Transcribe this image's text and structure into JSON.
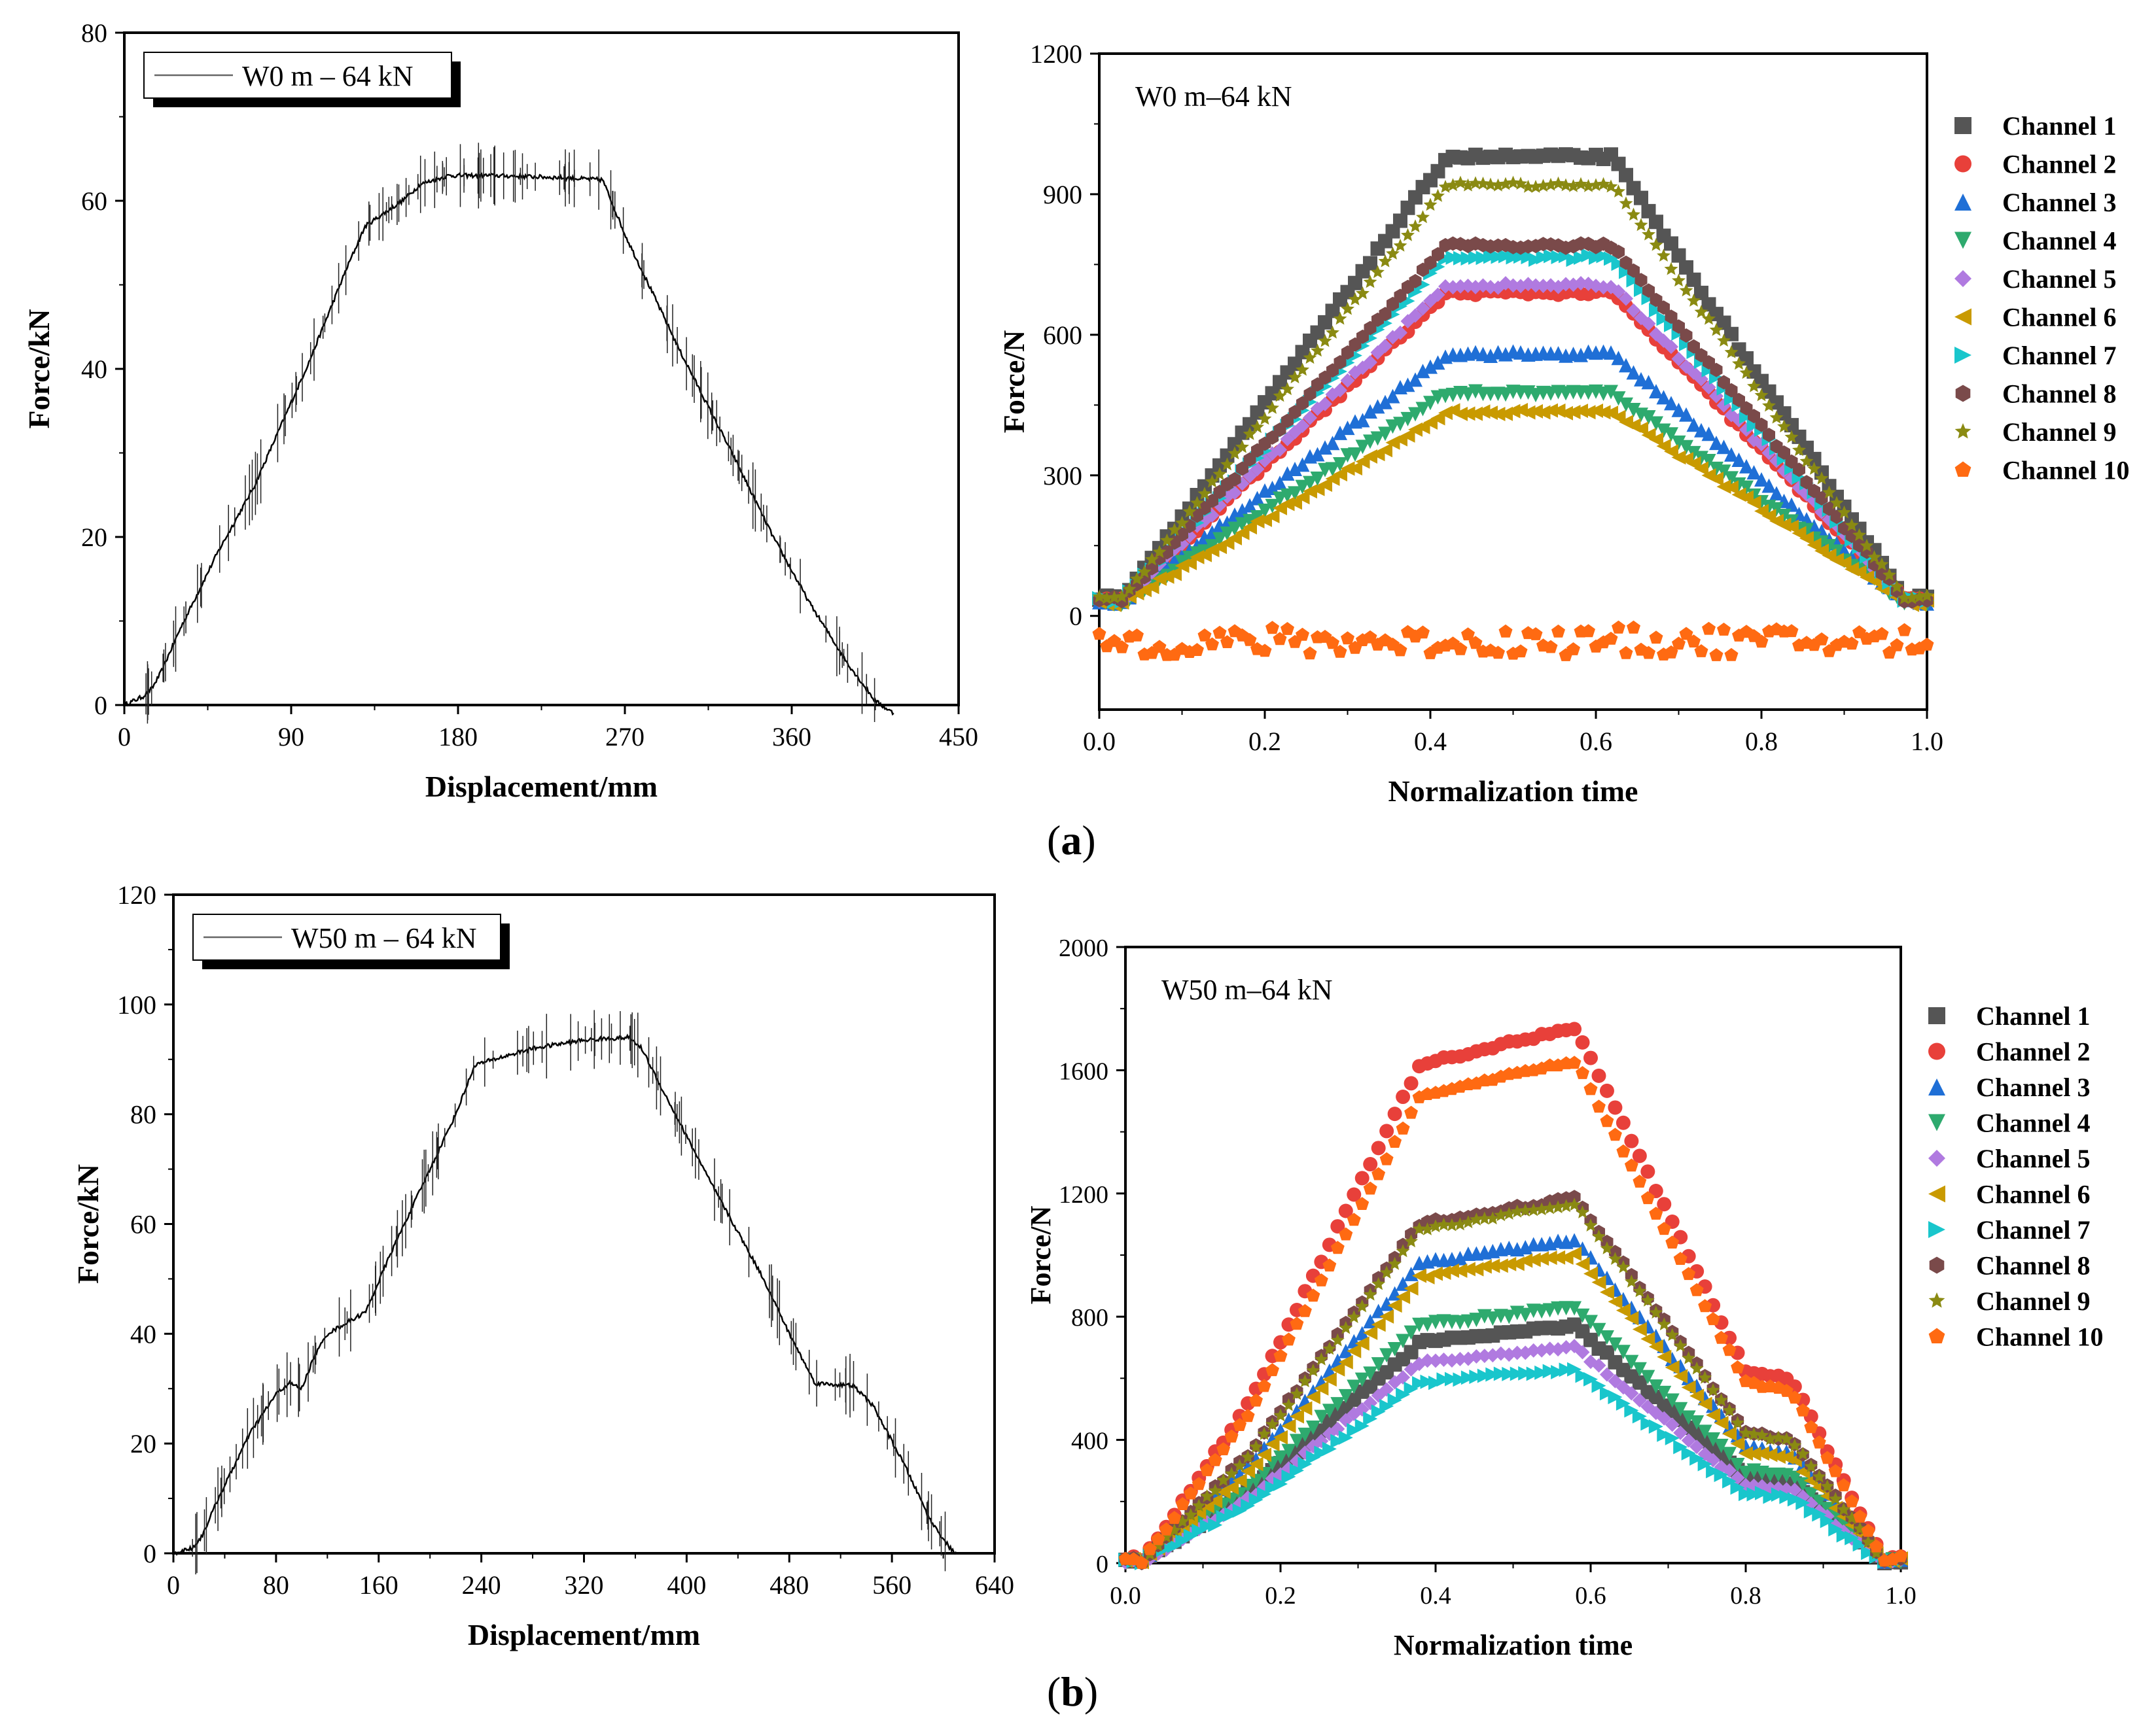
{
  "panels": {
    "a": {
      "label": "a"
    },
    "b": {
      "label": "b"
    }
  },
  "charts": [
    {
      "id": "chart-a-left",
      "type": "line",
      "legend_text": "W0 m – 64 kN",
      "xlabel": "Displacement/mm",
      "ylabel": "Force/kN",
      "xlim": [
        0,
        450
      ],
      "ylim": [
        0,
        80
      ],
      "xticks": [
        0,
        90,
        180,
        270,
        360,
        450
      ],
      "yticks": [
        0,
        20,
        40,
        60,
        80
      ],
      "series": [
        {
          "name": "W0 m – 64 kN",
          "color": "#000000",
          "points": [
            [
              0,
              0
            ],
            [
              10,
              1
            ],
            [
              15,
              2
            ],
            [
              20,
              4
            ],
            [
              30,
              9
            ],
            [
              50,
              18
            ],
            [
              70,
              26
            ],
            [
              90,
              36
            ],
            [
              100,
              41
            ],
            [
              120,
              52
            ],
            [
              130,
              57
            ],
            [
              140,
              58.5
            ],
            [
              150,
              60
            ],
            [
              160,
              62
            ],
            [
              175,
              63
            ],
            [
              200,
              63
            ],
            [
              230,
              62.8
            ],
            [
              258,
              62.5
            ],
            [
              270,
              56
            ],
            [
              300,
              42
            ],
            [
              330,
              29
            ],
            [
              350,
              20
            ],
            [
              370,
              12
            ],
            [
              390,
              5
            ],
            [
              405,
              0.5
            ],
            [
              415,
              -1
            ]
          ]
        }
      ]
    },
    {
      "id": "chart-a-right",
      "type": "scatter",
      "annotation": "W0 m–64 kN",
      "xlabel": "Normalization time",
      "ylabel": "Force/N",
      "xlim": [
        0.0,
        1.0
      ],
      "ylim": [
        -200,
        1200
      ],
      "xticks": [
        "0.0",
        "0.2",
        "0.4",
        "0.6",
        "0.8",
        "1.0"
      ],
      "yticks": [
        0,
        300,
        600,
        900,
        1200
      ],
      "series": [
        {
          "name": "Channel 1",
          "color": "#555555",
          "marker": "square",
          "plateau": 980
        },
        {
          "name": "Channel 2",
          "color": "#E8403A",
          "marker": "circle",
          "plateau": 690
        },
        {
          "name": "Channel 3",
          "color": "#1F6FD6",
          "marker": "triangle-up",
          "plateau": 560
        },
        {
          "name": "Channel 4",
          "color": "#2EAA6E",
          "marker": "triangle-down",
          "plateau": 475
        },
        {
          "name": "Channel 5",
          "color": "#B07AE0",
          "marker": "diamond",
          "plateau": 705
        },
        {
          "name": "Channel 6",
          "color": "#C99A00",
          "marker": "triangle-left",
          "plateau": 435
        },
        {
          "name": "Channel 7",
          "color": "#19C6CC",
          "marker": "triangle-right",
          "plateau": 765
        },
        {
          "name": "Channel 8",
          "color": "#7A4A4A",
          "marker": "hexagon",
          "plateau": 790
        },
        {
          "name": "Channel 9",
          "color": "#8A8A12",
          "marker": "star",
          "plateau": 920
        },
        {
          "name": "Channel 10",
          "color": "#FF6A12",
          "marker": "pentagon",
          "plateau": -55
        }
      ]
    },
    {
      "id": "chart-b-left",
      "type": "line",
      "legend_text": "W50 m – 64 kN",
      "xlabel": "Displacement/mm",
      "ylabel": "Force/kN",
      "xlim": [
        0,
        640
      ],
      "ylim": [
        0,
        120
      ],
      "xticks": [
        0,
        80,
        160,
        240,
        320,
        400,
        480,
        560,
        640
      ],
      "yticks": [
        0,
        20,
        40,
        60,
        80,
        100,
        120
      ],
      "series": [
        {
          "name": "W50 m – 64 kN",
          "color": "#000000",
          "points": [
            [
              0,
              0
            ],
            [
              15,
              1
            ],
            [
              22,
              3
            ],
            [
              35,
              10
            ],
            [
              60,
              22
            ],
            [
              80,
              29
            ],
            [
              90,
              31
            ],
            [
              100,
              30
            ],
            [
              110,
              36
            ],
            [
              120,
              40
            ],
            [
              135,
              42
            ],
            [
              150,
              44
            ],
            [
              170,
              55
            ],
            [
              200,
              70
            ],
            [
              220,
              80
            ],
            [
              235,
              89
            ],
            [
              250,
              90
            ],
            [
              280,
              92
            ],
            [
              320,
              93.5
            ],
            [
              355,
              94
            ],
            [
              365,
              92
            ],
            [
              380,
              85
            ],
            [
              420,
              67
            ],
            [
              460,
              50
            ],
            [
              480,
              40
            ],
            [
              500,
              31
            ],
            [
              530,
              30.5
            ],
            [
              545,
              27
            ],
            [
              570,
              16
            ],
            [
              590,
              6
            ],
            [
              605,
              1
            ],
            [
              610,
              0
            ]
          ]
        }
      ]
    },
    {
      "id": "chart-b-right",
      "type": "scatter",
      "annotation": "W50 m–64 kN",
      "xlabel": "Normalization time",
      "ylabel": "Force/N",
      "xlim": [
        0.0,
        1.0
      ],
      "ylim": [
        0,
        2000
      ],
      "xticks": [
        "0.0",
        "0.2",
        "0.4",
        "0.6",
        "0.8",
        "1.0"
      ],
      "yticks": [
        0,
        400,
        800,
        1200,
        1600,
        2000
      ],
      "series": [
        {
          "name": "Channel 1",
          "color": "#555555",
          "marker": "square",
          "plateau": 770
        },
        {
          "name": "Channel 2",
          "color": "#E8403A",
          "marker": "circle",
          "plateau": 1740
        },
        {
          "name": "Channel 3",
          "color": "#1F6FD6",
          "marker": "triangle-up",
          "plateau": 1050
        },
        {
          "name": "Channel 4",
          "color": "#2EAA6E",
          "marker": "triangle-down",
          "plateau": 830
        },
        {
          "name": "Channel 5",
          "color": "#B07AE0",
          "marker": "diamond",
          "plateau": 700
        },
        {
          "name": "Channel 6",
          "color": "#C99A00",
          "marker": "triangle-left",
          "plateau": 1000
        },
        {
          "name": "Channel 7",
          "color": "#19C6CC",
          "marker": "triangle-right",
          "plateau": 630
        },
        {
          "name": "Channel 8",
          "color": "#7A4A4A",
          "marker": "hexagon",
          "plateau": 1185
        },
        {
          "name": "Channel 9",
          "color": "#8A8A12",
          "marker": "star",
          "plateau": 1165
        },
        {
          "name": "Channel 10",
          "color": "#FF6A12",
          "marker": "pentagon",
          "plateau": 1630
        }
      ]
    }
  ]
}
